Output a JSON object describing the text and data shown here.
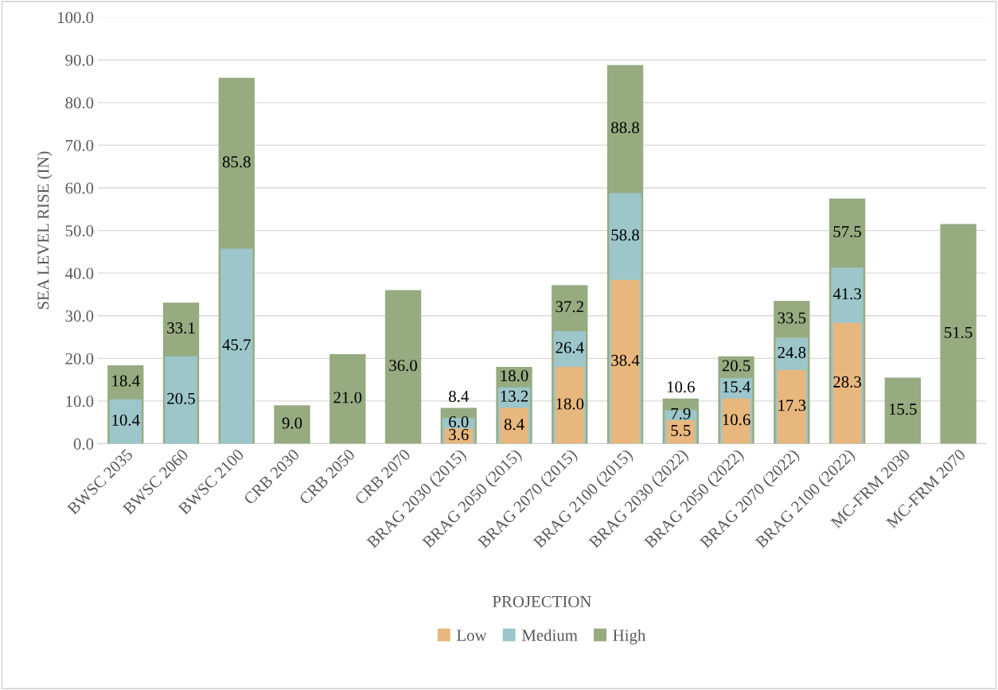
{
  "chart_data": {
    "type": "bar",
    "xlabel": "PROJECTION",
    "ylabel": "SEA LEVEL RISE (IN)",
    "categories": [
      "BWSC 2035",
      "BWSC 2060",
      "BWSC 2100",
      "CRB 2030",
      "CRB 2050",
      "CRB 2070",
      "BRAG 2030 (2015)",
      "BRAG 2050 (2015)",
      "BRAG 2070 (2015)",
      "BRAG 2100 (2015)",
      "BRAG 2030 (2022)",
      "BRAG 2050 (2022)",
      "BRAG 2070 (2022)",
      "BRAG 2100 (2022)",
      "MC-FRM 2030",
      "MC-FRM 2070"
    ],
    "series": [
      {
        "name": "Low",
        "color": "#e8b77e",
        "values": [
          null,
          null,
          null,
          null,
          null,
          null,
          3.6,
          8.4,
          18.0,
          38.4,
          5.5,
          10.6,
          17.3,
          28.3,
          null,
          null
        ],
        "value_labels": [
          null,
          null,
          null,
          null,
          null,
          null,
          "3.6",
          "8.4",
          "18.0",
          "38.4",
          "5.5",
          "10.6",
          "17.3",
          "28.3",
          null,
          null
        ]
      },
      {
        "name": "Medium",
        "color": "#9cc6c9",
        "values": [
          10.4,
          20.5,
          45.7,
          null,
          null,
          null,
          6.0,
          13.2,
          26.4,
          58.8,
          7.9,
          15.4,
          24.8,
          41.3,
          null,
          null
        ],
        "value_labels": [
          "10.4",
          "20.5",
          "45.7",
          null,
          null,
          null,
          "6.0",
          "13.2",
          "26.4",
          "58.8",
          "7.9",
          "15.4",
          "24.8",
          "41.3",
          null,
          null
        ]
      },
      {
        "name": "High",
        "color": "#96ab80",
        "values": [
          18.4,
          33.1,
          85.8,
          9.0,
          21.0,
          36.0,
          8.4,
          18.0,
          37.2,
          88.8,
          10.6,
          20.5,
          33.5,
          57.5,
          15.5,
          51.5
        ],
        "value_labels": [
          "18.4",
          "33.1",
          "85.8",
          "9.0",
          "21.0",
          "36.0",
          "8.4",
          "18.0",
          "37.2",
          "88.8",
          "10.6",
          "20.5",
          "33.5",
          "57.5",
          "15.5",
          "51.5"
        ]
      }
    ],
    "ylim": [
      0,
      100
    ],
    "yticks": [
      {
        "value": 0,
        "label": "0.0"
      },
      {
        "value": 10,
        "label": "10.0"
      },
      {
        "value": 20,
        "label": "20.0"
      },
      {
        "value": 30,
        "label": "30.0"
      },
      {
        "value": 40,
        "label": "40.0"
      },
      {
        "value": 50,
        "label": "50.0"
      },
      {
        "value": 60,
        "label": "60.0"
      },
      {
        "value": 70,
        "label": "70.0"
      },
      {
        "value": 80,
        "label": "80.0"
      },
      {
        "value": 90,
        "label": "90.0"
      },
      {
        "value": 100,
        "label": "100.0"
      }
    ],
    "grid": "y",
    "legend": "bottom"
  }
}
